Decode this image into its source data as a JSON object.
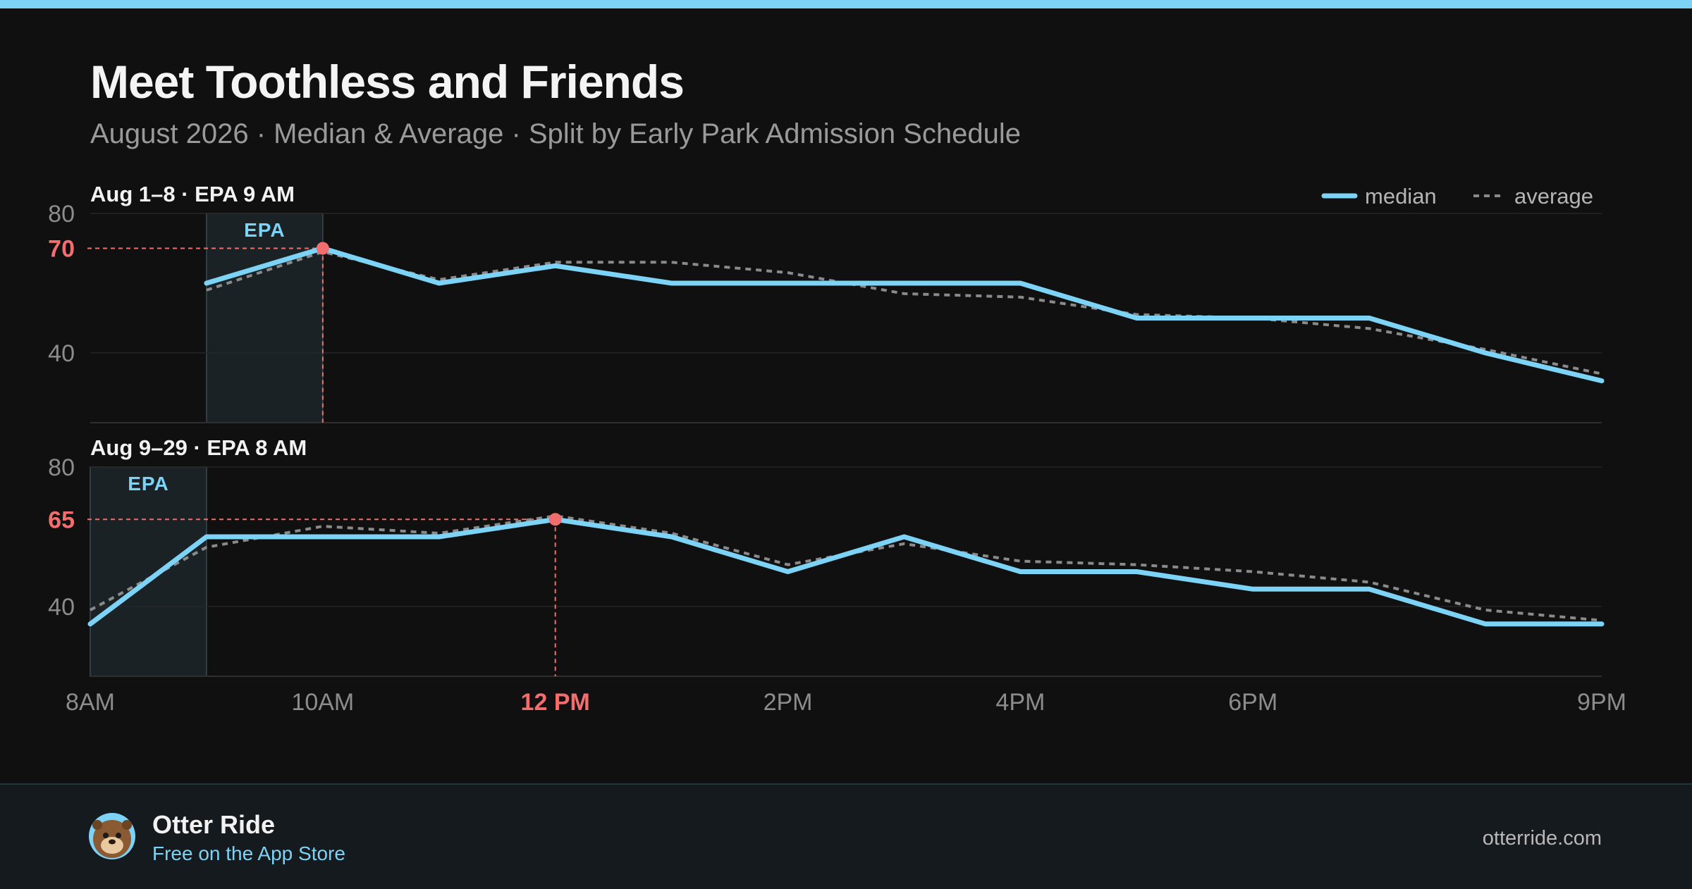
{
  "header": {
    "title": "Meet Toothless and Friends",
    "subtitle": "August 2026 · Median & Average · Split by Early Park Admission Schedule"
  },
  "legend": {
    "median": "median",
    "average": "average"
  },
  "colors": {
    "median": "#7dd3f5",
    "average": "#8a8a8a",
    "highlight": "#f26d6d",
    "epa_band": "#1b2226",
    "background": "#101010"
  },
  "chart_data": {
    "type": "line",
    "x_ticks": [
      "8AM",
      "10AM",
      "12 PM",
      "2PM",
      "4PM",
      "6PM",
      "9PM"
    ],
    "x_tick_hours": [
      8,
      10,
      12,
      14,
      16,
      18,
      21
    ],
    "highlight_tick": "12 PM",
    "grid": true,
    "legend_position": "top-right",
    "panels": [
      {
        "label": "Aug 1–8 · EPA 9 AM",
        "epa_label": "EPA",
        "epa_range": [
          9,
          10
        ],
        "ylim": [
          20,
          80
        ],
        "y_ticks": [
          80,
          40
        ],
        "peak": {
          "hour": 10,
          "value": 70,
          "label": "70"
        },
        "series": [
          {
            "name": "median",
            "hours": [
              9,
              10,
              11,
              12,
              13,
              14,
              15,
              16,
              17,
              18,
              19,
              20,
              21
            ],
            "values": [
              60,
              70,
              60,
              65,
              60,
              60,
              60,
              60,
              50,
              50,
              50,
              40,
              32
            ]
          },
          {
            "name": "average",
            "hours": [
              9,
              10,
              11,
              12,
              13,
              14,
              15,
              16,
              17,
              18,
              19,
              20,
              21
            ],
            "values": [
              58,
              69,
              61,
              66,
              66,
              63,
              57,
              56,
              51,
              50,
              47,
              41,
              34
            ]
          }
        ]
      },
      {
        "label": "Aug 9–29 · EPA 8 AM",
        "epa_label": "EPA",
        "epa_range": [
          8,
          9
        ],
        "ylim": [
          20,
          80
        ],
        "y_ticks": [
          80,
          40
        ],
        "peak": {
          "hour": 12,
          "value": 65,
          "label": "65"
        },
        "series": [
          {
            "name": "median",
            "hours": [
              8,
              9,
              10,
              11,
              12,
              13,
              14,
              15,
              16,
              17,
              18,
              19,
              20,
              21
            ],
            "values": [
              35,
              60,
              60,
              60,
              65,
              60,
              50,
              60,
              50,
              50,
              45,
              45,
              35,
              35
            ]
          },
          {
            "name": "average",
            "hours": [
              8,
              9,
              10,
              11,
              12,
              13,
              14,
              15,
              16,
              17,
              18,
              19,
              20,
              21
            ],
            "values": [
              39,
              57,
              63,
              61,
              66,
              61,
              52,
              58,
              53,
              52,
              50,
              47,
              39,
              36
            ]
          }
        ]
      }
    ]
  },
  "footer": {
    "app_name": "Otter Ride",
    "app_store": "Free on the App Store",
    "site": "otterride.com",
    "avatar_icon": "otter-icon"
  }
}
